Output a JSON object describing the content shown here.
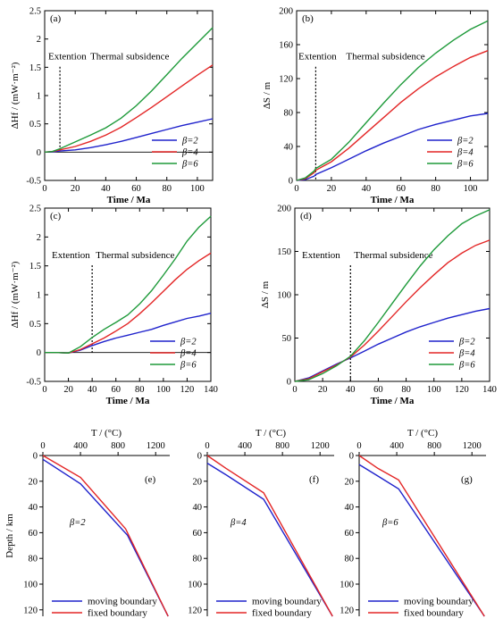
{
  "colors": {
    "beta2": "#1f22cc",
    "beta4": "#e32626",
    "beta6": "#1e9a3a",
    "moving": "#1f22cc",
    "fixed": "#e32626"
  },
  "chart_data": [
    {
      "type": "line",
      "panel_label": "(a)",
      "xlabel": "Time / Ma",
      "ylabel": "ΔHf / (mW·m⁻²)",
      "xlim": [
        0,
        110
      ],
      "ylim": [
        -0.5,
        2.5
      ],
      "xticks": [
        0,
        20,
        40,
        60,
        80,
        100
      ],
      "yticks": [
        -0.5,
        0,
        0.5,
        1,
        1.5,
        2,
        2.5
      ],
      "annotations": {
        "left": "Extention",
        "right": "Thermal subsidence",
        "divider_x": 10
      },
      "series": [
        {
          "name": "β=2",
          "x": [
            0,
            5,
            10,
            20,
            30,
            40,
            50,
            60,
            70,
            80,
            90,
            100,
            110
          ],
          "y": [
            0,
            0.005,
            0.02,
            0.04,
            0.08,
            0.13,
            0.19,
            0.26,
            0.33,
            0.4,
            0.47,
            0.53,
            0.59
          ]
        },
        {
          "name": "β=4",
          "x": [
            0,
            5,
            10,
            20,
            30,
            40,
            50,
            60,
            70,
            80,
            90,
            100,
            110
          ],
          "y": [
            0,
            0.01,
            0.04,
            0.1,
            0.19,
            0.3,
            0.44,
            0.61,
            0.79,
            0.98,
            1.17,
            1.36,
            1.54
          ]
        },
        {
          "name": "β=6",
          "x": [
            0,
            5,
            10,
            20,
            30,
            40,
            50,
            60,
            70,
            80,
            90,
            100,
            110
          ],
          "y": [
            0,
            0.01,
            0.06,
            0.18,
            0.3,
            0.43,
            0.6,
            0.82,
            1.08,
            1.37,
            1.66,
            1.93,
            2.2
          ]
        }
      ]
    },
    {
      "type": "line",
      "panel_label": "(b)",
      "xlabel": "Time / Ma",
      "ylabel": "ΔS / m",
      "xlim": [
        0,
        110
      ],
      "ylim": [
        0,
        200
      ],
      "xticks": [
        0,
        20,
        40,
        60,
        80,
        100
      ],
      "yticks": [
        0,
        40,
        80,
        120,
        160,
        200
      ],
      "annotations": {
        "left": "Extention",
        "right": "Thermal subsidence",
        "divider_x": 11
      },
      "series": [
        {
          "name": "β=2",
          "x": [
            0,
            5,
            10,
            11,
            20,
            30,
            40,
            50,
            60,
            70,
            80,
            90,
            100,
            110
          ],
          "y": [
            0,
            1,
            5,
            7,
            15,
            25,
            35,
            44,
            52,
            60,
            66,
            71,
            76,
            79
          ]
        },
        {
          "name": "β=4",
          "x": [
            0,
            5,
            10,
            11,
            20,
            30,
            40,
            50,
            60,
            70,
            80,
            90,
            100,
            110
          ],
          "y": [
            0,
            2,
            9,
            12,
            22,
            38,
            56,
            74,
            92,
            108,
            122,
            134,
            145,
            153
          ]
        },
        {
          "name": "β=6",
          "x": [
            0,
            5,
            10,
            11,
            20,
            30,
            40,
            50,
            60,
            70,
            80,
            90,
            100,
            110
          ],
          "y": [
            0,
            3,
            11,
            14,
            25,
            45,
            68,
            91,
            113,
            133,
            150,
            165,
            178,
            188
          ]
        }
      ]
    },
    {
      "type": "line",
      "panel_label": "(c)",
      "xlabel": "Time / Ma",
      "ylabel": "ΔHf / (mW·m⁻²)",
      "xlim": [
        0,
        140
      ],
      "ylim": [
        -0.5,
        2.5
      ],
      "xticks": [
        0,
        20,
        40,
        60,
        80,
        100,
        120,
        140
      ],
      "yticks": [
        -0.5,
        0,
        0.5,
        1,
        1.5,
        2,
        2.5
      ],
      "annotations": {
        "left": "Extention",
        "right": "Thermal subsidence",
        "divider_x": 40
      },
      "series": [
        {
          "name": "β=2",
          "x": [
            0,
            10,
            20,
            30,
            40,
            50,
            60,
            70,
            80,
            90,
            100,
            110,
            120,
            130,
            140
          ],
          "y": [
            0,
            0,
            -0.01,
            0.04,
            0.12,
            0.19,
            0.25,
            0.3,
            0.35,
            0.4,
            0.47,
            0.53,
            0.59,
            0.63,
            0.68
          ]
        },
        {
          "name": "β=4",
          "x": [
            0,
            10,
            20,
            30,
            40,
            50,
            60,
            70,
            80,
            90,
            100,
            110,
            120,
            130,
            140
          ],
          "y": [
            0,
            0,
            -0.01,
            0.05,
            0.15,
            0.25,
            0.37,
            0.5,
            0.67,
            0.86,
            1.06,
            1.26,
            1.44,
            1.59,
            1.72
          ]
        },
        {
          "name": "β=6",
          "x": [
            0,
            10,
            20,
            30,
            40,
            50,
            60,
            70,
            80,
            90,
            100,
            110,
            120,
            130,
            140
          ],
          "y": [
            0,
            0,
            -0.01,
            0.1,
            0.26,
            0.4,
            0.52,
            0.65,
            0.84,
            1.07,
            1.34,
            1.62,
            1.93,
            2.17,
            2.36
          ]
        }
      ]
    },
    {
      "type": "line",
      "panel_label": "(d)",
      "xlabel": "Time / Ma",
      "ylabel": "ΔS / m",
      "xlim": [
        0,
        140
      ],
      "ylim": [
        0,
        200
      ],
      "xticks": [
        0,
        20,
        40,
        60,
        80,
        100,
        120,
        140
      ],
      "yticks": [
        0,
        50,
        100,
        150,
        200
      ],
      "annotations": {
        "left": "Extention",
        "right": "Thermal subsidence",
        "divider_x": 40
      },
      "series": [
        {
          "name": "β=2",
          "x": [
            0,
            10,
            20,
            30,
            40,
            50,
            60,
            70,
            80,
            90,
            100,
            110,
            120,
            130,
            140
          ],
          "y": [
            0,
            4,
            12,
            20,
            27,
            35,
            43,
            50,
            57,
            63,
            68,
            73,
            77,
            81,
            84
          ]
        },
        {
          "name": "β=4",
          "x": [
            0,
            10,
            20,
            30,
            40,
            50,
            60,
            70,
            80,
            90,
            100,
            110,
            120,
            130,
            140
          ],
          "y": [
            0,
            3,
            11,
            19,
            28,
            42,
            58,
            75,
            92,
            108,
            123,
            137,
            148,
            157,
            163
          ]
        },
        {
          "name": "β=6",
          "x": [
            0,
            10,
            20,
            30,
            40,
            50,
            60,
            70,
            80,
            90,
            100,
            110,
            120,
            130,
            140
          ],
          "y": [
            0,
            2,
            9,
            18,
            29,
            47,
            68,
            90,
            112,
            133,
            152,
            168,
            182,
            191,
            198
          ]
        }
      ]
    },
    {
      "type": "line",
      "panel_label": "(e)",
      "beta_label": "β=2",
      "xlabel": "T / (°C)",
      "ylabel": "Depth / km",
      "xlim": [
        0,
        1350
      ],
      "ylim": [
        0,
        125
      ],
      "xticks": [
        0,
        400,
        800,
        1200
      ],
      "yticks": [
        0,
        20,
        40,
        60,
        80,
        100,
        120
      ],
      "series": [
        {
          "name": "moving boundary",
          "x": [
            0,
            400,
            900,
            1333
          ],
          "y": [
            3,
            22,
            62,
            125
          ]
        },
        {
          "name": "fixed boundary",
          "x": [
            0,
            400,
            880,
            1333
          ],
          "y": [
            0,
            17,
            57,
            125
          ]
        }
      ]
    },
    {
      "type": "line",
      "panel_label": "(f)",
      "beta_label": "β=4",
      "xlabel": "T / (°C)",
      "ylabel": "",
      "xlim": [
        0,
        1350
      ],
      "ylim": [
        0,
        125
      ],
      "xticks": [
        0,
        400,
        800,
        1200
      ],
      "yticks": [
        0,
        20,
        40,
        60,
        80,
        100,
        120
      ],
      "series": [
        {
          "name": "moving boundary",
          "x": [
            0,
            200,
            600,
            1333
          ],
          "y": [
            6,
            15,
            34,
            125
          ]
        },
        {
          "name": "fixed boundary",
          "x": [
            0,
            200,
            600,
            1333
          ],
          "y": [
            0,
            10,
            29,
            125
          ]
        }
      ]
    },
    {
      "type": "line",
      "panel_label": "(g)",
      "beta_label": "β=6",
      "xlabel": "T / (°C)",
      "ylabel": "",
      "xlim": [
        0,
        1350
      ],
      "ylim": [
        0,
        125
      ],
      "xticks": [
        0,
        400,
        800,
        1200
      ],
      "yticks": [
        0,
        20,
        40,
        60,
        80,
        100,
        120
      ],
      "series": [
        {
          "name": "moving boundary",
          "x": [
            0,
            200,
            420,
            1333
          ],
          "y": [
            7,
            16,
            26,
            125
          ]
        },
        {
          "name": "fixed boundary",
          "x": [
            0,
            200,
            420,
            1333
          ],
          "y": [
            0,
            10,
            19,
            125
          ]
        }
      ]
    }
  ]
}
